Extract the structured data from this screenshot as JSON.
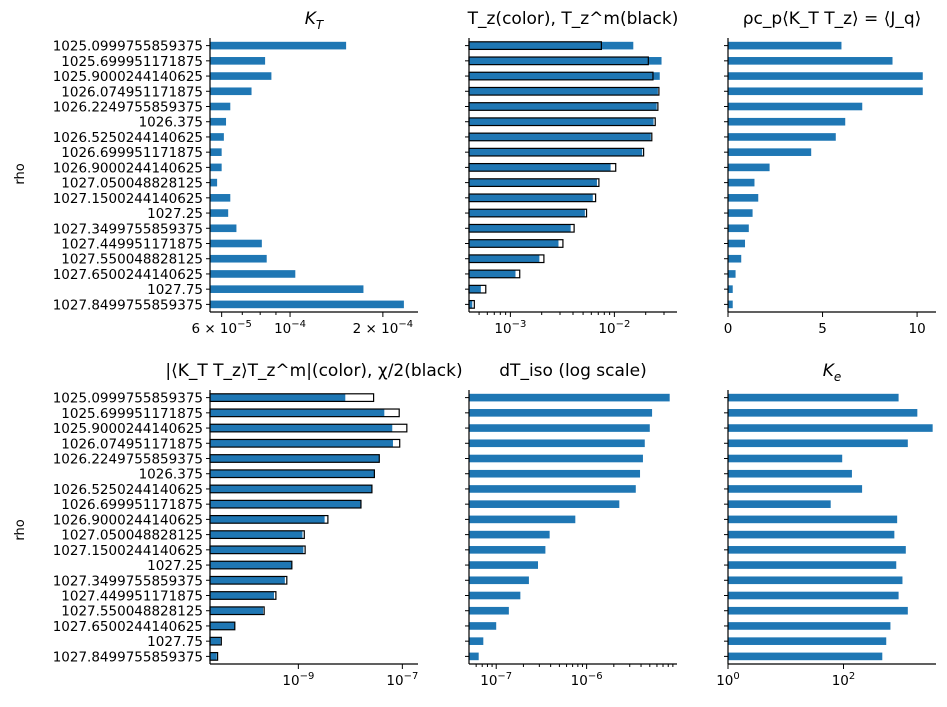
{
  "chart_data": {
    "type": "bar",
    "orientation": "horizontal",
    "categories": [
      "1025.0999755859375",
      "1025.699951171875",
      "1025.9000244140625",
      "1026.074951171875",
      "1026.2249755859375",
      "1026.375",
      "1026.5250244140625",
      "1026.699951171875",
      "1026.9000244140625",
      "1027.050048828125",
      "1027.1500244140625",
      "1027.25",
      "1027.3499755859375",
      "1027.449951171875",
      "1027.550048828125",
      "1027.6500244140625",
      "1027.75",
      "1027.8499755859375"
    ],
    "ylabel": "rho",
    "colors": {
      "bar": "#1f77b4",
      "outline": "#000000"
    },
    "panels": [
      {
        "id": "kt",
        "title_main": "K",
        "title_sub": "T",
        "xscale": "log",
        "xlim": [
          5.5e-05,
          0.00026
        ],
        "ticks": [
          {
            "value": 6e-05,
            "mant": "6",
            "exp": "−5"
          },
          {
            "value": 0.0001,
            "mant": "",
            "exp": "−4"
          },
          {
            "value": 0.0002,
            "mant": "2",
            "exp": "−4"
          }
        ],
        "minor": [
          7e-05,
          8e-05,
          9e-05,
          0.0003
        ],
        "series": [
          {
            "name": "K_T",
            "style": "fill",
            "values": [
              0.000152,
              8.3e-05,
              8.7e-05,
              7.5e-05,
              6.4e-05,
              6.2e-05,
              6.1e-05,
              6e-05,
              6e-05,
              5.8e-05,
              6.4e-05,
              6.3e-05,
              6.7e-05,
              8.1e-05,
              8.4e-05,
              0.000104,
              0.000173,
              0.000234
            ]
          }
        ]
      },
      {
        "id": "tz",
        "title": "T_z(color), T_z^m(black)",
        "xscale": "log",
        "xlim": [
          0.0004,
          0.04
        ],
        "ticks": [
          {
            "value": 0.001,
            "mant": "",
            "exp": "−3"
          },
          {
            "value": 0.01,
            "mant": "",
            "exp": "−2"
          }
        ],
        "minor": [
          0.0005,
          0.0006,
          0.0007,
          0.0008,
          0.0009,
          0.002,
          0.003,
          0.004,
          0.005,
          0.006,
          0.007,
          0.008,
          0.009,
          0.02,
          0.03
        ],
        "series": [
          {
            "name": "T_z",
            "style": "fill",
            "values": [
              0.0152,
              0.0284,
              0.0273,
              0.0262,
              0.0255,
              0.0238,
              0.0224,
              0.0185,
              0.0092,
              0.0068,
              0.0062,
              0.0052,
              0.0038,
              0.0029,
              0.0019,
              0.00112,
              0.00052,
              0.00043
            ]
          },
          {
            "name": "T_z^m",
            "style": "outline",
            "values": [
              0.0075,
              0.0212,
              0.0235,
              0.0268,
              0.0262,
              0.0247,
              0.0229,
              0.0191,
              0.0103,
              0.0071,
              0.0066,
              0.0054,
              0.0041,
              0.0032,
              0.0021,
              0.00123,
              0.00058,
              0.00045
            ]
          }
        ]
      },
      {
        "id": "jq",
        "title": "ρc_p⟨K_T T_z⟩ = ⟨J_q⟩",
        "xscale": "linear",
        "xlim": [
          0,
          11
        ],
        "ticks": [
          {
            "value": 0,
            "label": "0"
          },
          {
            "value": 5,
            "label": "5"
          },
          {
            "value": 10,
            "label": "10"
          }
        ],
        "series": [
          {
            "name": "J_q",
            "style": "fill",
            "values": [
              6.0,
              8.7,
              10.3,
              10.3,
              7.1,
              6.2,
              5.7,
              4.4,
              2.2,
              1.4,
              1.6,
              1.3,
              1.1,
              0.9,
              0.7,
              0.4,
              0.25,
              0.25
            ]
          }
        ]
      },
      {
        "id": "chi",
        "title": "|⟨K_T T_z⟩T_z^m|(color), χ/2(black)",
        "xscale": "log",
        "xlim": [
          2e-11,
          2e-07
        ],
        "ticks": [
          {
            "value": 1e-09,
            "mant": "",
            "exp": "−9"
          },
          {
            "value": 1e-07,
            "mant": "",
            "exp": "−7"
          }
        ],
        "minor": [],
        "series": [
          {
            "name": "KTTz*Tzm",
            "style": "fill",
            "values": [
              8e-09,
              4.5e-08,
              6.4e-08,
              6.6e-08,
              3.6e-08,
              2.9e-08,
              2.6e-08,
              1.6e-08,
              3.2e-09,
              1.2e-09,
              1.25e-09,
              7.5e-10,
              5.5e-10,
              3.4e-10,
              2.1e-10,
              6e-11,
              3.2e-11,
              2.7e-11
            ]
          },
          {
            "name": "chi/2",
            "style": "outline",
            "values": [
              2.8e-08,
              8.7e-08,
              1.22e-07,
              8.9e-08,
              3.6e-08,
              2.9e-08,
              2.6e-08,
              1.6e-08,
              3.7e-09,
              1.3e-09,
              1.35e-09,
              7.5e-10,
              6e-10,
              3.7e-10,
              2.2e-10,
              6e-11,
              3.3e-11,
              2.8e-11
            ]
          }
        ]
      },
      {
        "id": "dtiso",
        "title": "dT_iso (log scale)",
        "xscale": "log",
        "xlim": [
          5e-08,
          1e-05
        ],
        "ticks": [
          {
            "value": 1e-07,
            "mant": "",
            "exp": "−7"
          },
          {
            "value": 1e-06,
            "mant": "",
            "exp": "−6"
          }
        ],
        "minor": [
          6e-08,
          7e-08,
          8e-08,
          9e-08,
          2e-07,
          3e-07,
          4e-07,
          5e-07,
          6e-07,
          7e-07,
          8e-07,
          9e-07,
          2e-06,
          3e-06,
          4e-06,
          5e-06,
          6e-06,
          7e-06,
          8e-06,
          9e-06
        ],
        "series": [
          {
            "name": "dT_iso",
            "style": "fill",
            "values": [
              8.3e-06,
              5.3e-06,
              5e-06,
              4.4e-06,
              4.2e-06,
              3.9e-06,
              3.5e-06,
              2.3e-06,
              7.5e-07,
              3.9e-07,
              3.5e-07,
              2.9e-07,
              2.3e-07,
              1.85e-07,
              1.38e-07,
              1e-07,
              7.2e-08,
              6.4e-08
            ]
          }
        ]
      },
      {
        "id": "ke",
        "title_main": "K",
        "title_sub": "e",
        "xscale": "log",
        "xlim": [
          1,
          4000
        ],
        "ticks": [
          {
            "value": 1,
            "base": "10",
            "exp": "0"
          },
          {
            "value": 100,
            "base": "10",
            "exp": "2"
          }
        ],
        "minor": [],
        "series": [
          {
            "name": "K_e",
            "style": "fill",
            "values": [
              900,
              1900,
              3500,
              1300,
              95,
              140,
              210,
              60,
              850,
              760,
              1200,
              820,
              1050,
              900,
              1300,
              650,
              550,
              470
            ]
          }
        ]
      }
    ]
  }
}
